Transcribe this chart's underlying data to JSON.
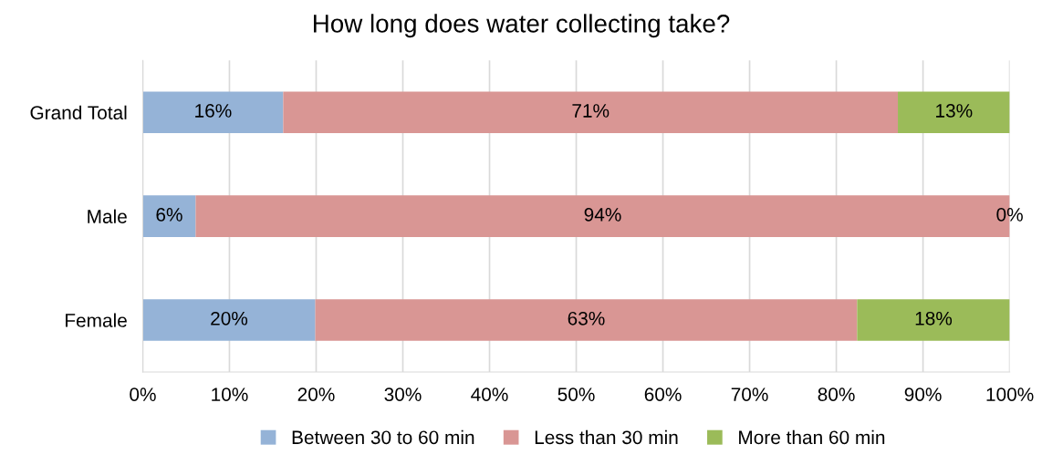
{
  "chart_data": {
    "type": "bar",
    "orientation": "horizontal",
    "stacked": true,
    "title": "How long does water collecting take?",
    "categories": [
      "Grand Total",
      "Male",
      "Female"
    ],
    "series": [
      {
        "name": "Between 30 to 60 min",
        "color": "#95b3d7",
        "values": [
          16.2,
          6.1,
          19.9
        ],
        "value_labels": [
          "16%",
          "6%",
          "20%"
        ]
      },
      {
        "name": "Less than 30 min",
        "color": "#d99694",
        "values": [
          70.9,
          93.9,
          62.5
        ],
        "value_labels": [
          "71%",
          "94%",
          "63%"
        ]
      },
      {
        "name": "More than 60 min",
        "color": "#9bbb59",
        "values": [
          12.9,
          0,
          17.6
        ],
        "value_labels": [
          "13%",
          "0%",
          "18%"
        ]
      }
    ],
    "xlim": [
      0,
      100
    ],
    "xticks": [
      {
        "value": 0,
        "label": "0%"
      },
      {
        "value": 10,
        "label": "10%"
      },
      {
        "value": 20,
        "label": "20%"
      },
      {
        "value": 30,
        "label": "30%"
      },
      {
        "value": 40,
        "label": "40%"
      },
      {
        "value": 50,
        "label": "50%"
      },
      {
        "value": 60,
        "label": "60%"
      },
      {
        "value": 70,
        "label": "70%"
      },
      {
        "value": 80,
        "label": "80%"
      },
      {
        "value": 90,
        "label": "90%"
      },
      {
        "value": 100,
        "label": "100%"
      }
    ],
    "grid": "x",
    "legend": "bottom"
  }
}
